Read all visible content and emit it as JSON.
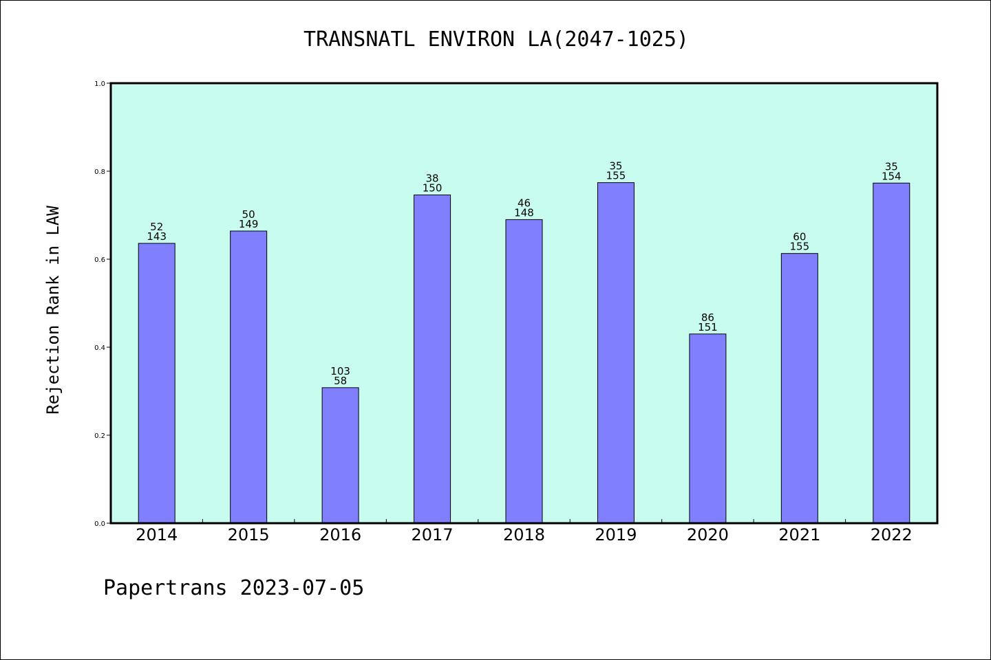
{
  "chart_data": {
    "type": "bar",
    "title": "TRANSNATL ENVIRON LA(2047-1025)",
    "xlabel": "",
    "ylabel": "Rejection Rank in LAW",
    "ylim": [
      0.0,
      1.0
    ],
    "yticks": [
      "0.0",
      "0.2",
      "0.4",
      "0.6",
      "0.8",
      "1.0"
    ],
    "categories": [
      "2014",
      "2015",
      "2016",
      "2017",
      "2018",
      "2019",
      "2020",
      "2021",
      "2022"
    ],
    "values": [
      0.636,
      0.664,
      0.308,
      0.746,
      0.69,
      0.774,
      0.43,
      0.613,
      0.773
    ],
    "label_top": [
      "52",
      "50",
      "103",
      "38",
      "46",
      "35",
      "86",
      "60",
      "35"
    ],
    "label_bottom": [
      "143",
      "149",
      "58",
      "150",
      "148",
      "155",
      "151",
      "155",
      "154"
    ],
    "grid": false,
    "colors": {
      "bar_fill": "#8080ff",
      "plot_background": "#c8fcef"
    }
  },
  "footer": "Papertrans 2023-07-05"
}
